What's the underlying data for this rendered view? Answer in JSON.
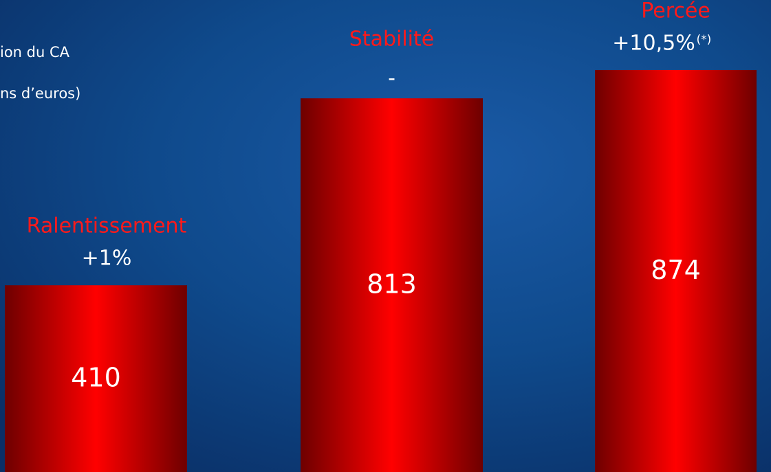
{
  "chart_data": {
    "type": "bar",
    "notes": [
      "ion du CA",
      "ns d’euros)"
    ],
    "values": [
      410,
      813,
      874
    ],
    "annotations": [
      {
        "label": "Ralentissement",
        "change": "+1%"
      },
      {
        "label": "Stabilité",
        "change": "-"
      },
      {
        "label": "Percée",
        "change": "+10,5%",
        "footnote": "(*)"
      }
    ],
    "color": "#ff0000",
    "ylim": [
      0,
      1025
    ]
  }
}
